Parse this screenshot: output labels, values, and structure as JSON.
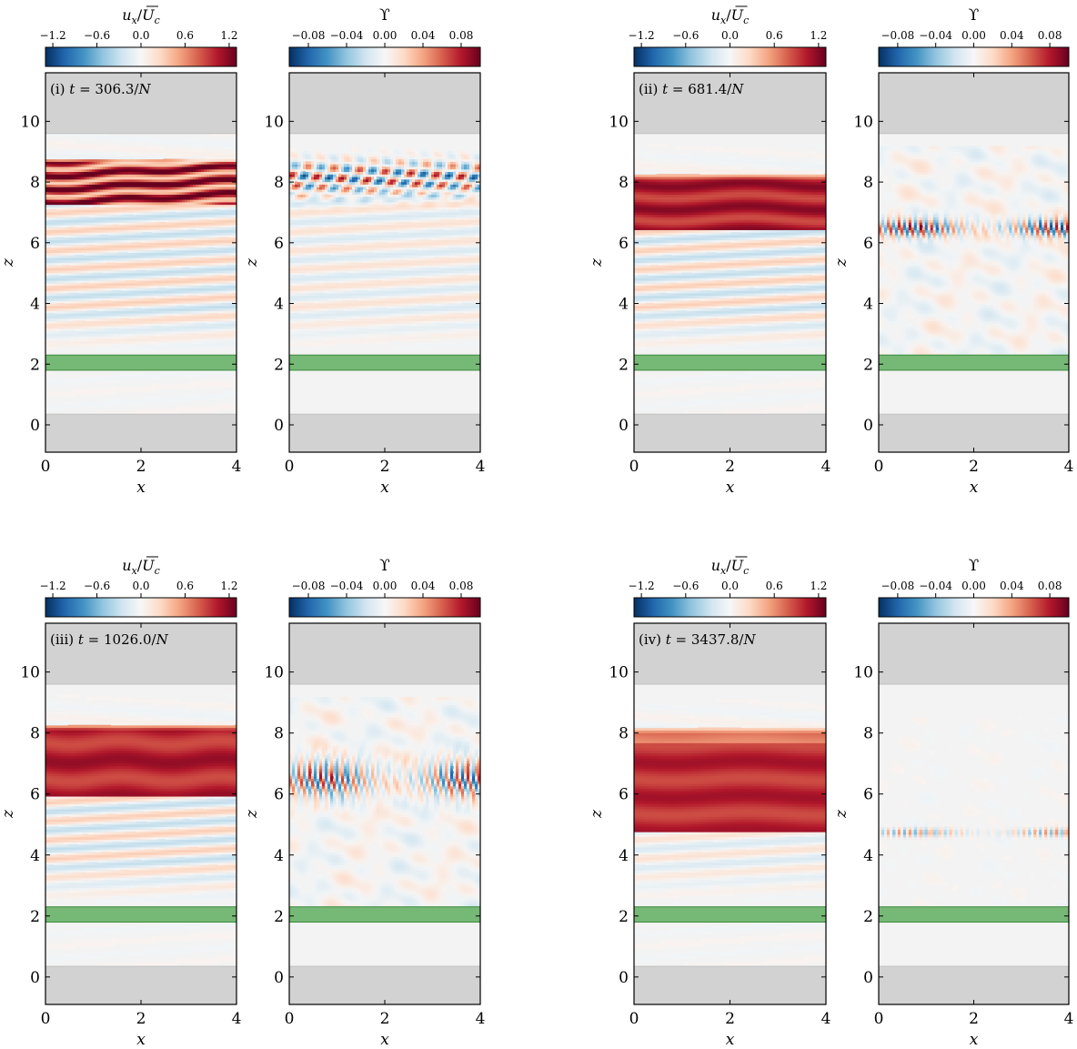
{
  "figure": {
    "velocity_colorbar": {
      "label": "u_x/U_c",
      "label_main": "u",
      "label_sub": "x",
      "label_den": "U",
      "label_den_sub": "c",
      "ticks": [
        "−1.2",
        "−0.6",
        "0.0",
        "0.6",
        "1.2"
      ],
      "tick_values": [
        -1.2,
        -0.6,
        0.0,
        0.6,
        1.2
      ],
      "range": [
        -1.3,
        1.3
      ],
      "colormap": "RdBu_r"
    },
    "upsilon_colorbar": {
      "label": "ϒ",
      "ticks": [
        "−0.08",
        "−0.04",
        "0.00",
        "0.04",
        "0.08"
      ],
      "tick_values": [
        -0.08,
        -0.04,
        0.0,
        0.04,
        0.08
      ],
      "range": [
        -0.1,
        0.1
      ],
      "colormap": "RdBu_r"
    },
    "axes": {
      "xlabel": "x",
      "ylabel": "z",
      "xticks": [
        "0",
        "2",
        "4"
      ],
      "xtick_values": [
        0,
        2,
        4
      ],
      "yticks": [
        "0",
        "2",
        "4",
        "6",
        "8",
        "10"
      ],
      "ytick_values": [
        0,
        2,
        4,
        6,
        8,
        10
      ],
      "xlim": [
        0,
        4
      ],
      "ylim": [
        -0.9,
        11.6
      ]
    },
    "colors": {
      "blue_dark": "#053061",
      "red_dark": "#67001f",
      "sponge_gray": "#d2d2d2",
      "forcing_band_green": "#76b876",
      "forcing_band_edge": "#3a8a3a",
      "background_mid": "#f3f3f3"
    },
    "regions": {
      "bottom_sponge_z": [
        -0.9,
        0.35
      ],
      "top_sponge_z": [
        9.6,
        11.6
      ],
      "forcing_band_z": [
        1.8,
        2.3
      ]
    }
  },
  "chart_data": [
    {
      "type": "heatmap",
      "panel": "(i)",
      "time_label": "(i) t = 306.3/N",
      "time_prefix": "(i)",
      "time_value": "306.3",
      "velocity_field": {
        "jet_z": [
          7.3,
          8.8
        ],
        "peak_ux": 1.3,
        "structure": "multiple thin alternating layers between z=7.3 and z=8.8; tilted internal wave beams below (amplitude ~0.3)"
      },
      "upsilon_field": {
        "active_z": [
          7.6,
          8.7
        ],
        "peak": 0.09,
        "structure": "large alternating vortical blobs along z≈8"
      }
    },
    {
      "type": "heatmap",
      "panel": "(ii)",
      "time_label": "(ii) t = 681.4/N",
      "time_prefix": "(ii)",
      "time_value": "681.4",
      "velocity_field": {
        "jet_z": [
          6.4,
          8.3
        ],
        "peak_ux": 1.3,
        "structure": "thick jet with sharp lower edge at z≈6.4; weaker internal wave beams below"
      },
      "upsilon_field": {
        "active_z": [
          6.0,
          7.0
        ],
        "peak": 0.09,
        "structure": "thin layer of small-scale features at z≈6.5; diffuse patches above and below"
      }
    },
    {
      "type": "heatmap",
      "panel": "(iii)",
      "time_label": "(iii) t = 1026.0/N",
      "time_prefix": "(iii)",
      "time_value": "1026.0",
      "velocity_field": {
        "jet_z": [
          5.9,
          8.3
        ],
        "peak_ux": 1.3,
        "structure": "jet with strong layers at z≈7.5 and z≈6.3; wave beams below"
      },
      "upsilon_field": {
        "active_z": [
          5.5,
          7.5
        ],
        "peak": 0.08,
        "structure": "small-scale features concentrated at z≈6"
      }
    },
    {
      "type": "heatmap",
      "panel": "(iv)",
      "time_label": "(iv) t = 3437.8/N",
      "time_prefix": "(iv)",
      "time_value": "3437.8",
      "velocity_field": {
        "jet_z": [
          4.8,
          8.2
        ],
        "peak_ux": 1.3,
        "structure": "broad deep jet with sharp lower edge at z≈4.8; faint waves below"
      },
      "upsilon_field": {
        "active_z": [
          4.5,
          5.0
        ],
        "peak": 0.05,
        "structure": "weak thin layer at z≈4.8; near-zero elsewhere"
      }
    }
  ]
}
